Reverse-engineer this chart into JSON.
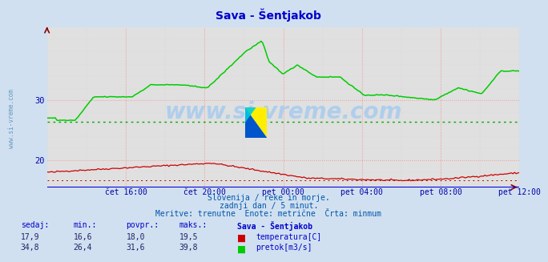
{
  "title": "Sava - Šentjakob",
  "title_color": "#0000cc",
  "bg_color": "#d0e0f0",
  "plot_bg_color": "#e0e0e0",
  "grid_color_major": "#ff8888",
  "tick_color": "#0000aa",
  "xticklabels": [
    "čet 16:00",
    "čet 20:00",
    "pet 00:00",
    "pet 04:00",
    "pet 08:00",
    "pet 12:00"
  ],
  "xtick_positions": [
    0.1667,
    0.3333,
    0.5,
    0.6667,
    0.8333,
    1.0
  ],
  "yticks_left": [
    20,
    30
  ],
  "ylim": [
    15.5,
    42
  ],
  "xlim": [
    0,
    1
  ],
  "temp_color": "#cc0000",
  "flow_color": "#00cc00",
  "min_flow": 26.4,
  "min_temp": 16.6,
  "watermark": "www.si-vreme.com",
  "watermark_color": "#aaccee",
  "footer_line1": "Slovenija / reke in morje.",
  "footer_line2": "zadnji dan / 5 minut.",
  "footer_line3": "Meritve: trenutne  Enote: metrične  Črta: minmum",
  "footer_color": "#0055aa",
  "table_headers": [
    "sedaj:",
    "min.:",
    "povpr.:",
    "maks.:"
  ],
  "table_title": "Sava - Šentjakob",
  "table_row1": [
    "17,9",
    "16,6",
    "18,0",
    "19,5"
  ],
  "table_row2": [
    "34,8",
    "26,4",
    "31,6",
    "39,8"
  ],
  "table_label1": "temperatura[C]",
  "table_label2": "pretok[m3/s]",
  "table_color": "#0000cc"
}
